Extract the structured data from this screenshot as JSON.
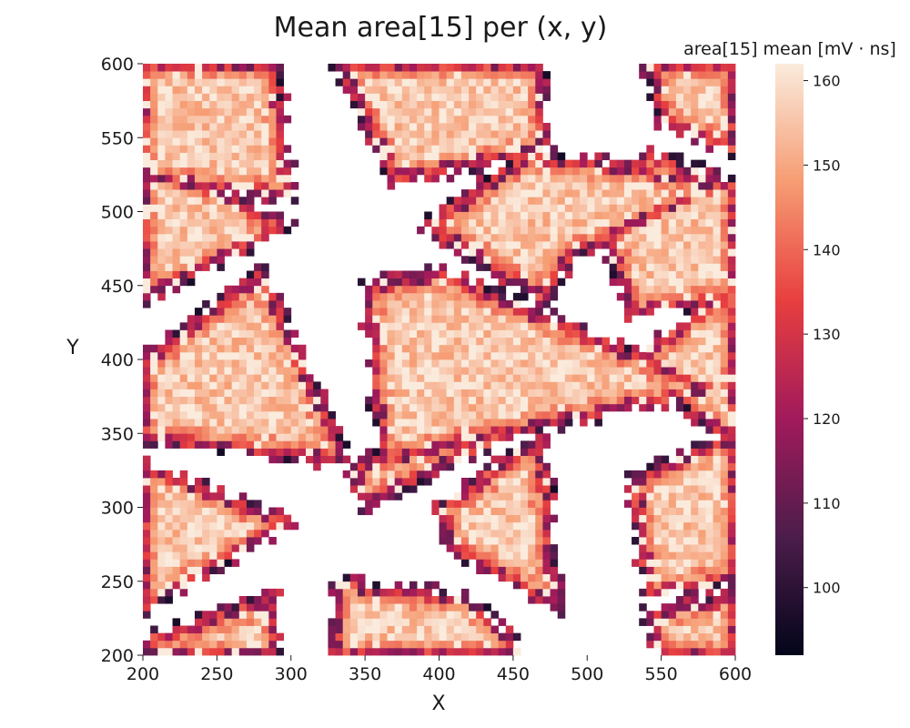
{
  "chart_data": {
    "type": "heatmap",
    "title": "Mean area[15] per (x, y)",
    "xlabel": "X",
    "ylabel": "Y",
    "xlim": [
      200,
      600
    ],
    "ylim": [
      200,
      600
    ],
    "x_ticks": [
      200,
      250,
      300,
      350,
      400,
      450,
      500,
      550,
      600
    ],
    "y_ticks": [
      200,
      250,
      300,
      350,
      400,
      450,
      500,
      550,
      600
    ],
    "grid": false,
    "cell_size": 5,
    "colorbar": {
      "label": "area[15] mean [mV · ns]",
      "range": [
        92,
        162
      ],
      "ticks": [
        100,
        110,
        120,
        130,
        140,
        150,
        160
      ],
      "colormap": "rocket",
      "colors": [
        "#03051a",
        "#4c1d4b",
        "#a11a5b",
        "#e83f3f",
        "#f69c73",
        "#faebdd"
      ]
    },
    "pattern": {
      "description_values": "triangular sensor regions with mean ~155 in interiors, edges ~120-140, gaps empty",
      "triangles": [
        {
          "vertices": [
            [
              200,
              600
            ],
            [
              290,
              600
            ],
            [
              300,
              510
            ],
            [
              200,
              520
            ]
          ]
        },
        {
          "vertices": [
            [
              200,
              540
            ],
            [
              300,
              490
            ],
            [
              200,
              440
            ]
          ]
        },
        {
          "vertices": [
            [
              200,
              400
            ],
            [
              280,
              460
            ],
            [
              340,
              330
            ],
            [
              200,
              345
            ]
          ]
        },
        {
          "vertices": [
            [
              200,
              330
            ],
            [
              300,
              290
            ],
            [
              200,
              230
            ]
          ]
        },
        {
          "vertices": [
            [
              200,
              210
            ],
            [
              290,
              240
            ],
            [
              290,
              200
            ],
            [
              200,
              200
            ]
          ]
        },
        {
          "vertices": [
            [
              330,
              600
            ],
            [
              470,
              600
            ],
            [
              470,
              540
            ],
            [
              370,
              520
            ]
          ]
        },
        {
          "vertices": [
            [
              390,
              490
            ],
            [
              460,
              540
            ],
            [
              600,
              520
            ],
            [
              490,
              470
            ],
            [
              470,
              440
            ]
          ]
        },
        {
          "vertices": [
            [
              350,
              450
            ],
            [
              400,
              460
            ],
            [
              590,
              380
            ],
            [
              360,
              330
            ]
          ]
        },
        {
          "vertices": [
            [
              340,
              330
            ],
            [
              470,
              360
            ],
            [
              350,
              300
            ]
          ]
        },
        {
          "vertices": [
            [
              400,
              300
            ],
            [
              470,
              350
            ],
            [
              480,
              230
            ],
            [
              410,
              270
            ]
          ]
        },
        {
          "vertices": [
            [
              330,
              250
            ],
            [
              420,
              240
            ],
            [
              460,
              200
            ],
            [
              330,
              200
            ]
          ]
        },
        {
          "vertices": [
            [
              540,
              600
            ],
            [
              600,
              600
            ],
            [
              600,
              540
            ],
            [
              550,
              560
            ]
          ]
        },
        {
          "vertices": [
            [
              500,
              520
            ],
            [
              540,
              540
            ],
            [
              600,
              520
            ],
            [
              600,
              440
            ],
            [
              530,
              430
            ]
          ]
        },
        {
          "vertices": [
            [
              530,
              400
            ],
            [
              600,
              450
            ],
            [
              600,
              340
            ]
          ]
        },
        {
          "vertices": [
            [
              530,
              320
            ],
            [
              600,
              350
            ],
            [
              600,
              250
            ],
            [
              540,
              240
            ]
          ]
        },
        {
          "vertices": [
            [
              540,
              230
            ],
            [
              600,
              240
            ],
            [
              600,
              200
            ],
            [
              550,
              200
            ]
          ]
        }
      ]
    }
  }
}
